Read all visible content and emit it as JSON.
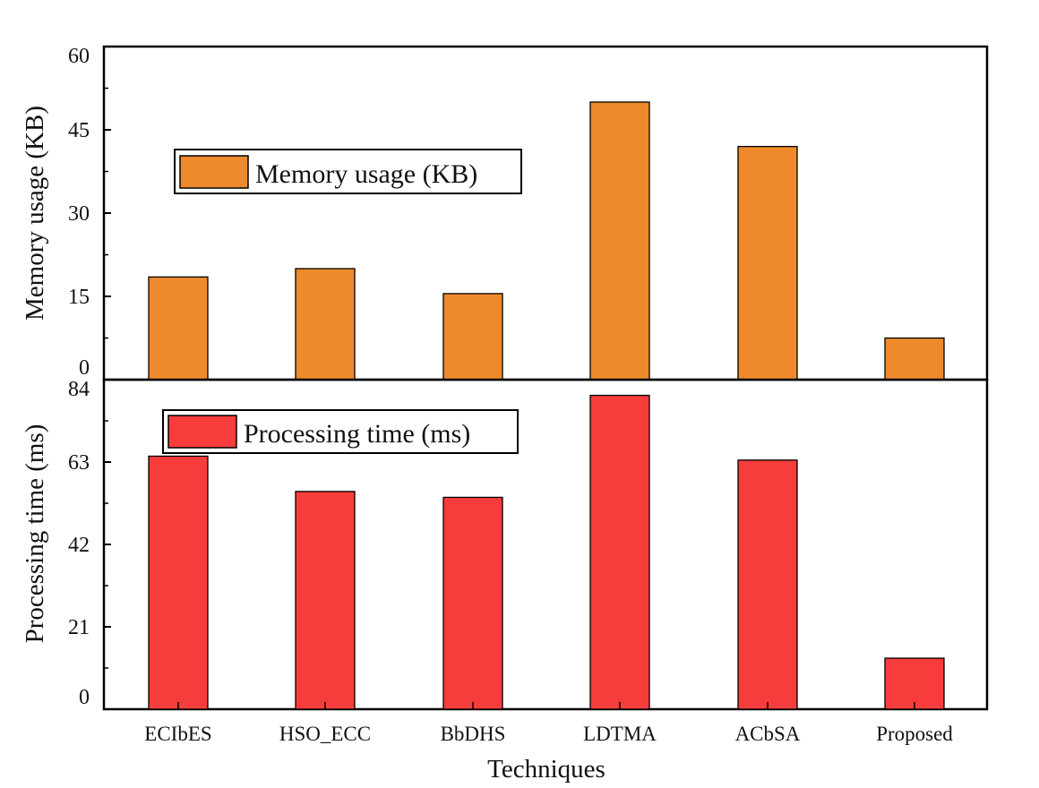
{
  "chart_data": [
    {
      "type": "bar",
      "ylabel": "Memory usage (KB)",
      "ylim": [
        0,
        60
      ],
      "yticks": [
        0,
        15,
        30,
        45,
        60
      ],
      "categories": [
        "ECIbES",
        "HSO_ECC",
        "BbDHS",
        "LDTMA",
        "ACbSA",
        "Proposed"
      ],
      "series": [
        {
          "name": "Memory usage (KB)",
          "color": "#EE8A2C",
          "values": [
            18.5,
            20,
            15.5,
            50,
            42,
            7.5
          ]
        }
      ],
      "legend": "upper-left"
    },
    {
      "type": "bar",
      "ylabel": "Processing time (ms)",
      "xlabel": "Techniques",
      "ylim": [
        0,
        84
      ],
      "yticks": [
        0,
        21,
        42,
        63,
        84
      ],
      "categories": [
        "ECIbES",
        "HSO_ECC",
        "BbDHS",
        "LDTMA",
        "ACbSA",
        "Proposed"
      ],
      "series": [
        {
          "name": "Processing time (ms)",
          "color": "#F73C3C",
          "values": [
            64.5,
            55.5,
            54,
            80,
            63.5,
            13
          ]
        }
      ],
      "legend": "upper-left"
    }
  ]
}
